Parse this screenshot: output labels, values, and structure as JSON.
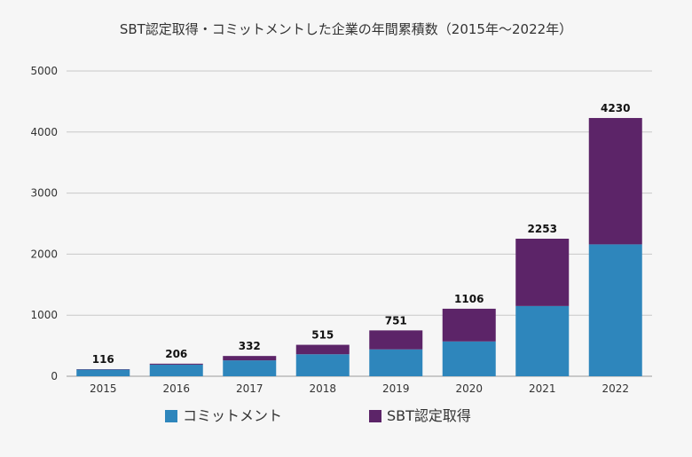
{
  "chart_data": {
    "type": "bar",
    "stacked": true,
    "title": "SBT認定取得・コミットメントした企業の年間累積数（2015年～2022年）",
    "categories": [
      "2015",
      "2016",
      "2017",
      "2018",
      "2019",
      "2020",
      "2021",
      "2022"
    ],
    "series": [
      {
        "name": "コミットメント",
        "color": "#2e86bc",
        "values": [
          110,
          190,
          260,
          360,
          440,
          570,
          1150,
          2160
        ]
      },
      {
        "name": "SBT認定取得",
        "color": "#5c2468",
        "values": [
          6,
          16,
          72,
          155,
          311,
          536,
          1103,
          2070
        ]
      }
    ],
    "totals": [
      "116",
      "206",
      "332",
      "515",
      "751",
      "1106",
      "2253",
      "4230"
    ],
    "yticks": [
      "0",
      "1000",
      "2000",
      "3000",
      "4000",
      "5000"
    ],
    "ylim": [
      0,
      5000
    ],
    "grid": true,
    "legend_position": "bottom"
  }
}
